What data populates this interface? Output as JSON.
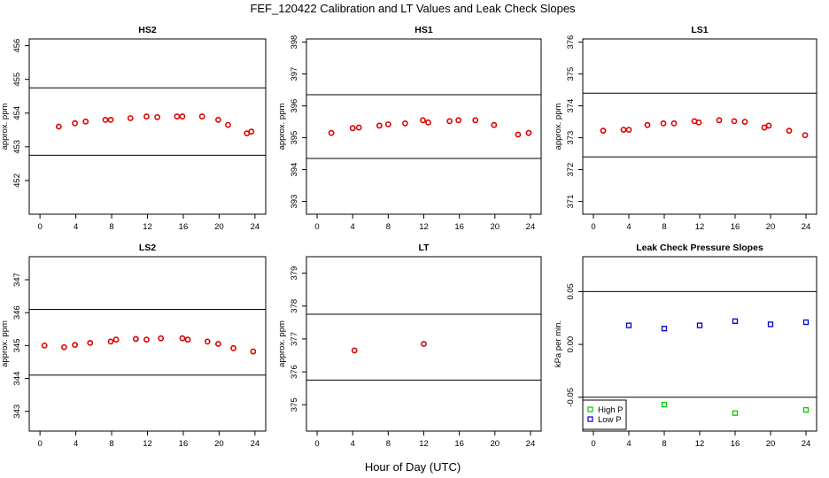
{
  "title": "FEF_120422  Calibration and LT Values and Leak Check Slopes",
  "xlabel": "Hour of Day (UTC)",
  "chart_data": [
    {
      "type": "scatter",
      "title": "HS2",
      "ylabel": "approx. ppm",
      "xlim": [
        -1.2,
        25.2
      ],
      "ylim": [
        451,
        456.2
      ],
      "xticks": [
        0,
        4,
        8,
        12,
        16,
        20,
        24
      ],
      "yticks": [
        452,
        453,
        454,
        455,
        456
      ],
      "hlines": [
        454.75,
        452.75
      ],
      "series": [
        {
          "color": "#dd0000",
          "x": [
            2.1,
            3.9,
            5.1,
            7.3,
            7.9,
            10.1,
            11.9,
            13.1,
            15.3,
            15.9,
            18.1,
            19.9,
            21.0,
            23.1,
            23.6
          ],
          "y": [
            453.6,
            453.7,
            453.75,
            453.8,
            453.8,
            453.85,
            453.9,
            453.88,
            453.9,
            453.9,
            453.9,
            453.8,
            453.65,
            453.4,
            453.45
          ]
        }
      ]
    },
    {
      "type": "scatter",
      "title": "HS1",
      "ylabel": "approx. ppm",
      "xlim": [
        -1.2,
        25.2
      ],
      "ylim": [
        392.6,
        398.1
      ],
      "xticks": [
        0,
        4,
        8,
        12,
        16,
        20,
        24
      ],
      "yticks": [
        393,
        394,
        395,
        396,
        397,
        398
      ],
      "hlines": [
        396.35,
        394.35
      ],
      "series": [
        {
          "color": "#dd0000",
          "x": [
            1.6,
            4.0,
            4.7,
            7.0,
            8.0,
            9.9,
            11.9,
            12.5,
            14.9,
            15.9,
            17.8,
            19.9,
            22.6,
            23.8
          ],
          "y": [
            395.15,
            395.3,
            395.32,
            395.38,
            395.42,
            395.45,
            395.55,
            395.48,
            395.52,
            395.55,
            395.55,
            395.4,
            395.1,
            395.15
          ]
        }
      ]
    },
    {
      "type": "scatter",
      "title": "LS1",
      "ylabel": "approx. ppm",
      "xlim": [
        -1.2,
        25.2
      ],
      "ylim": [
        370.6,
        376.1
      ],
      "xticks": [
        0,
        4,
        8,
        12,
        16,
        20,
        24
      ],
      "yticks": [
        371,
        372,
        373,
        374,
        375,
        376
      ],
      "hlines": [
        374.4,
        372.4
      ],
      "series": [
        {
          "color": "#dd0000",
          "x": [
            1.1,
            3.4,
            4.0,
            6.1,
            7.9,
            9.1,
            11.4,
            11.9,
            14.2,
            15.9,
            17.1,
            19.3,
            19.8,
            22.1,
            23.9
          ],
          "y": [
            373.22,
            373.25,
            373.25,
            373.4,
            373.45,
            373.45,
            373.52,
            373.48,
            373.55,
            373.52,
            373.5,
            373.32,
            373.38,
            373.22,
            373.08
          ]
        }
      ]
    },
    {
      "type": "scatter",
      "title": "LS2",
      "ylabel": "approx. ppm",
      "xlim": [
        -1.2,
        25.2
      ],
      "ylim": [
        342.4,
        347.7
      ],
      "xticks": [
        0,
        4,
        8,
        12,
        16,
        20,
        24
      ],
      "yticks": [
        343,
        344,
        345,
        346,
        347
      ],
      "hlines": [
        346.1,
        344.1
      ],
      "series": [
        {
          "color": "#dd0000",
          "x": [
            0.5,
            2.7,
            3.9,
            5.6,
            7.9,
            8.5,
            10.7,
            11.9,
            13.5,
            15.9,
            16.5,
            18.7,
            19.9,
            21.6,
            23.8
          ],
          "y": [
            345.0,
            344.95,
            345.02,
            345.08,
            345.12,
            345.18,
            345.2,
            345.18,
            345.22,
            345.22,
            345.18,
            345.12,
            345.05,
            344.92,
            344.82
          ]
        }
      ]
    },
    {
      "type": "scatter",
      "title": "LT",
      "ylabel": "approx. ppm",
      "xlim": [
        -1.2,
        25.2
      ],
      "ylim": [
        374.2,
        379.5
      ],
      "xticks": [
        0,
        4,
        8,
        12,
        16,
        20,
        24
      ],
      "yticks": [
        375,
        376,
        377,
        378,
        379
      ],
      "hlines": [
        377.75,
        375.75
      ],
      "series": [
        {
          "color": "#dd0000",
          "x": [
            4.2,
            12.0
          ],
          "y": [
            376.65,
            376.85
          ]
        }
      ]
    },
    {
      "type": "scatter",
      "title": "Leak Check Pressure Slopes",
      "ylabel": "kPa per min.",
      "xlim": [
        -1.2,
        25.2
      ],
      "ylim": [
        -0.082,
        0.083
      ],
      "xticks": [
        0,
        4,
        8,
        12,
        16,
        20,
        24
      ],
      "yticks": [
        -0.05,
        0.0,
        0.05
      ],
      "ytick_labels": [
        "-0.05",
        "0.00",
        "0.05"
      ],
      "hlines": [
        0.05,
        -0.05
      ],
      "legend": {
        "position": "bottom-left",
        "entries": [
          "High P",
          "Low P"
        ]
      },
      "series": [
        {
          "name": "High P",
          "color": "#00cc00",
          "x": [
            8.0,
            16.0,
            24.0
          ],
          "y": [
            -0.057,
            -0.065,
            -0.062
          ]
        },
        {
          "name": "Low P",
          "color": "#0000cc",
          "x": [
            4.0,
            8.0,
            12.0,
            16.0,
            20.0,
            24.0
          ],
          "y": [
            0.018,
            0.015,
            0.018,
            0.022,
            0.019,
            0.021
          ]
        }
      ]
    }
  ]
}
